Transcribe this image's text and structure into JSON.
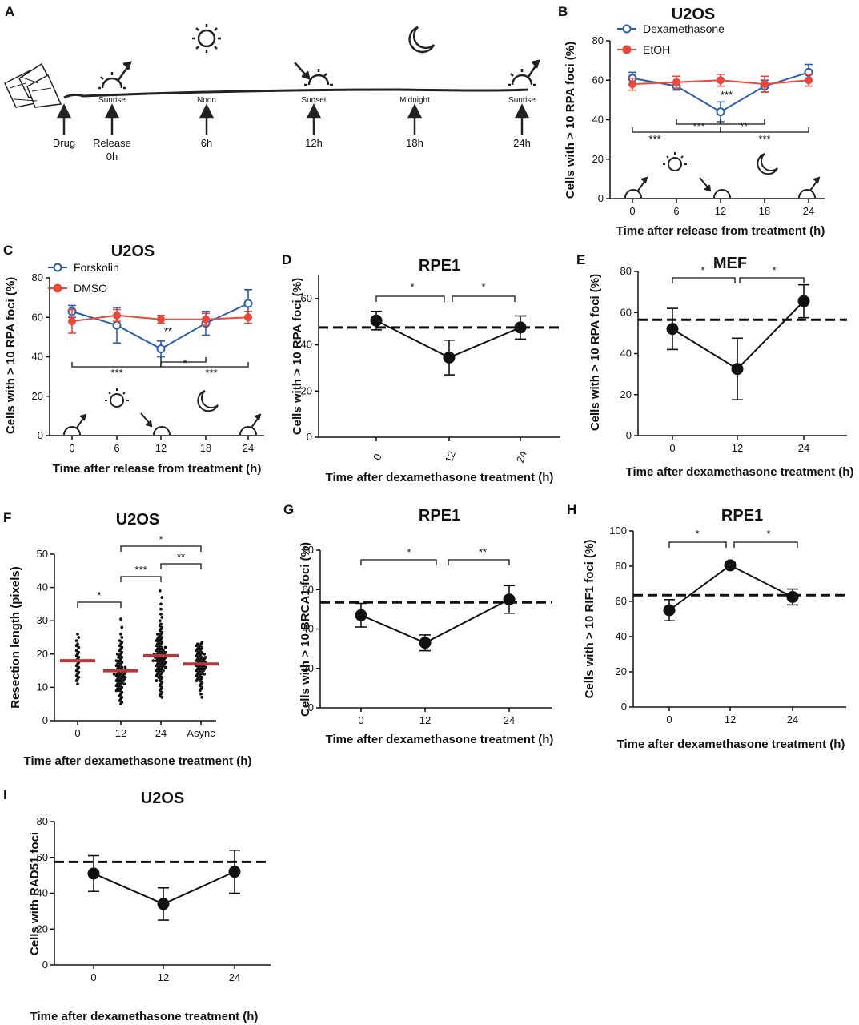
{
  "panels": {
    "A": {
      "label": "A",
      "events": [
        "Sunrise",
        "Noon",
        "Sunset",
        "Midnight",
        "Sunrise"
      ],
      "arrows": [
        "Drug",
        "Release",
        "6h",
        "12h",
        "18h",
        "24h"
      ],
      "release_time": "0h"
    },
    "B": {
      "label": "B"
    },
    "C": {
      "label": "C"
    },
    "D": {
      "label": "D"
    },
    "E": {
      "label": "E"
    },
    "F": {
      "label": "F"
    },
    "G": {
      "label": "G"
    },
    "H": {
      "label": "H"
    },
    "I": {
      "label": "I"
    }
  },
  "chart_data": [
    {
      "id": "B",
      "type": "line",
      "title": "U2OS",
      "xlabel": "Time after release from treatment (h)",
      "ylabel": "Cells with > 10 RPA foci (%)",
      "categories": [
        "0",
        "6",
        "12",
        "18",
        "24"
      ],
      "ylim": [
        0,
        80
      ],
      "yticks": [
        "0",
        "20",
        "40",
        "60",
        "80"
      ],
      "series": [
        {
          "name": "Dexamethasone",
          "color": "#2b5fad",
          "marker": "open",
          "values": [
            61,
            57,
            44,
            57,
            64
          ],
          "errors": [
            3,
            2,
            5,
            3,
            4
          ]
        },
        {
          "name": "EtOH",
          "color": "#e8473c",
          "marker": "filled",
          "values": [
            58,
            59,
            60,
            58,
            60
          ],
          "errors": [
            3,
            3,
            3,
            4,
            3
          ]
        }
      ],
      "significance": [
        "***",
        "***",
        "***",
        "**",
        "***",
        "***"
      ]
    },
    {
      "id": "C",
      "type": "line",
      "title": "U2OS",
      "xlabel": "Time after release from treatment (h)",
      "ylabel": "Cells with > 10 RPA foci (%)",
      "categories": [
        "0",
        "6",
        "12",
        "18",
        "24"
      ],
      "ylim": [
        0,
        80
      ],
      "yticks": [
        "0",
        "20",
        "40",
        "60",
        "80"
      ],
      "series": [
        {
          "name": "Forskolin",
          "color": "#2b5fad",
          "marker": "open",
          "values": [
            63,
            56,
            44,
            57,
            67
          ],
          "errors": [
            3,
            9,
            4,
            6,
            7
          ]
        },
        {
          "name": "DMSO",
          "color": "#e8473c",
          "marker": "filled",
          "values": [
            58,
            61,
            59,
            59,
            60
          ],
          "errors": [
            6,
            3,
            2,
            3,
            3
          ]
        }
      ],
      "significance": [
        "**",
        "***",
        "*",
        "***"
      ]
    },
    {
      "id": "D",
      "type": "line",
      "title": "RPE1",
      "xlabel": "Time after dexamethasone treatment (h)",
      "ylabel": "Cells with > 10 RPA foci (%)",
      "categories": [
        "0",
        "12",
        "24"
      ],
      "ylim": [
        0,
        70
      ],
      "yticks": [
        "0",
        "20",
        "40",
        "60"
      ],
      "values": [
        50.5,
        34.5,
        47.5
      ],
      "errors": [
        4,
        7.5,
        5
      ],
      "reference_line": 47.5,
      "significance": [
        "*",
        "*"
      ]
    },
    {
      "id": "E",
      "type": "line",
      "title": "MEF",
      "xlabel": "Time after dexamethasone treatment (h)",
      "ylabel": "Cells with > 10 RPA foci (%)",
      "categories": [
        "0",
        "12",
        "24"
      ],
      "ylim": [
        0,
        80
      ],
      "yticks": [
        "0",
        "20",
        "40",
        "60",
        "80"
      ],
      "values": [
        52,
        32.5,
        65.5
      ],
      "errors": [
        10,
        15,
        8
      ],
      "reference_line": 56.5,
      "significance": [
        "*",
        "*"
      ]
    },
    {
      "id": "F",
      "type": "scatter",
      "title": "U2OS",
      "xlabel": "Time after dexamethasone treatment (h)",
      "ylabel": "Resection length (pixels)",
      "categories": [
        "0",
        "12",
        "24",
        "Async"
      ],
      "ylim": [
        0,
        50
      ],
      "yticks": [
        "0",
        "10",
        "20",
        "30",
        "40",
        "50"
      ],
      "medians": [
        18,
        15,
        19.5,
        17
      ],
      "points": [
        [
          26,
          25,
          24,
          23,
          22.5,
          22,
          21,
          20.5,
          20,
          19.5,
          19,
          18.5,
          18,
          17.5,
          17,
          16.5,
          16,
          15.5,
          15,
          14.5,
          14,
          13.5,
          13,
          12.5,
          12,
          11
        ],
        [
          30.5,
          28,
          26,
          25,
          24,
          23.5,
          23,
          22.5,
          22,
          21.5,
          21,
          20.5,
          20,
          20,
          19.5,
          19,
          19,
          18.5,
          18,
          18,
          17.5,
          17.5,
          17,
          17,
          16.5,
          16.5,
          16,
          16,
          16,
          15.5,
          15.5,
          15,
          15,
          15,
          15,
          14.5,
          14.5,
          14.5,
          14,
          14,
          14,
          14,
          13.5,
          13.5,
          13.5,
          13,
          13,
          13,
          12.5,
          12.5,
          12.5,
          12,
          12,
          12,
          11.5,
          11.5,
          11,
          11,
          11,
          10.5,
          10.5,
          10,
          10,
          9.5,
          9.5,
          9,
          9,
          8.5,
          8,
          7.5,
          7,
          6.5,
          6,
          5.5,
          5
        ],
        [
          39,
          37,
          35,
          33.5,
          32,
          31,
          30,
          29,
          28.5,
          28,
          27.5,
          27,
          26.5,
          26,
          26,
          25.5,
          25,
          25,
          24.5,
          24.5,
          24,
          24,
          23.5,
          23.5,
          23,
          23,
          22.5,
          22.5,
          22,
          22,
          22,
          21.5,
          21.5,
          21,
          21,
          21,
          20.5,
          20.5,
          20.5,
          20,
          20,
          20,
          20,
          19.5,
          19.5,
          19.5,
          19,
          19,
          19,
          19,
          18.5,
          18.5,
          18.5,
          18,
          18,
          18,
          18,
          17.5,
          17.5,
          17.5,
          17,
          17,
          17,
          16.5,
          16.5,
          16.5,
          16,
          16,
          16,
          15.5,
          15.5,
          15,
          15,
          15,
          14.5,
          14.5,
          14,
          14,
          13.5,
          13.5,
          13,
          13,
          12.5,
          12,
          12,
          11.5,
          11,
          10.5,
          10,
          9.5,
          9,
          8.5,
          8,
          7.5,
          7
        ],
        [
          23.5,
          23,
          23,
          22.5,
          22.5,
          22,
          22,
          21.5,
          21.5,
          21,
          21,
          20.5,
          20.5,
          20,
          20,
          20,
          19.5,
          19.5,
          19,
          19,
          19,
          18.5,
          18.5,
          18.5,
          18,
          18,
          18,
          17.5,
          17.5,
          17.5,
          17,
          17,
          17,
          17,
          16.5,
          16.5,
          16.5,
          16,
          16,
          16,
          15.5,
          15.5,
          15.5,
          15,
          15,
          15,
          14.5,
          14.5,
          14,
          14,
          14,
          13.5,
          13.5,
          13,
          13,
          12.5,
          12.5,
          12,
          12,
          11.5,
          11,
          10.5,
          10,
          9.5,
          9,
          8,
          7
        ]
      ],
      "significance": [
        "*",
        "***",
        "**",
        "*"
      ]
    },
    {
      "id": "G",
      "type": "line",
      "title": "RPE1",
      "xlabel": "Time after dexamethasone treatment (h)",
      "ylabel": "Cells with > 10 BRCA1 foci (%)",
      "categories": [
        "0",
        "12",
        "24"
      ],
      "ylim": [
        0,
        80
      ],
      "yticks": [
        "0",
        "20",
        "40",
        "60",
        "80"
      ],
      "values": [
        47,
        33,
        55
      ],
      "errors": [
        6,
        4,
        7
      ],
      "reference_line": 53.5,
      "significance": [
        "*",
        "**"
      ]
    },
    {
      "id": "H",
      "type": "line",
      "title": "RPE1",
      "xlabel": "Time after dexamethasone treatment (h)",
      "ylabel": "Cells with > 10 RIF1 foci (%)",
      "categories": [
        "0",
        "12",
        "24"
      ],
      "ylim": [
        0,
        100
      ],
      "yticks": [
        "0",
        "20",
        "40",
        "60",
        "80",
        "100"
      ],
      "values": [
        55,
        80.5,
        62.5
      ],
      "errors": [
        6,
        1.5,
        4.5
      ],
      "reference_line": 63.5,
      "significance": [
        "*",
        "*"
      ]
    },
    {
      "id": "I",
      "type": "line",
      "title": "U2OS",
      "xlabel": "Time after dexamethasone treatment (h)",
      "ylabel": "Cells with RAD51 foci",
      "categories": [
        "0",
        "12",
        "24"
      ],
      "ylim": [
        0,
        80
      ],
      "yticks": [
        "0",
        "20",
        "40",
        "60",
        "80"
      ],
      "values": [
        51,
        34,
        52
      ],
      "errors": [
        10,
        9,
        12
      ],
      "reference_line": 57.5,
      "significance": []
    }
  ]
}
